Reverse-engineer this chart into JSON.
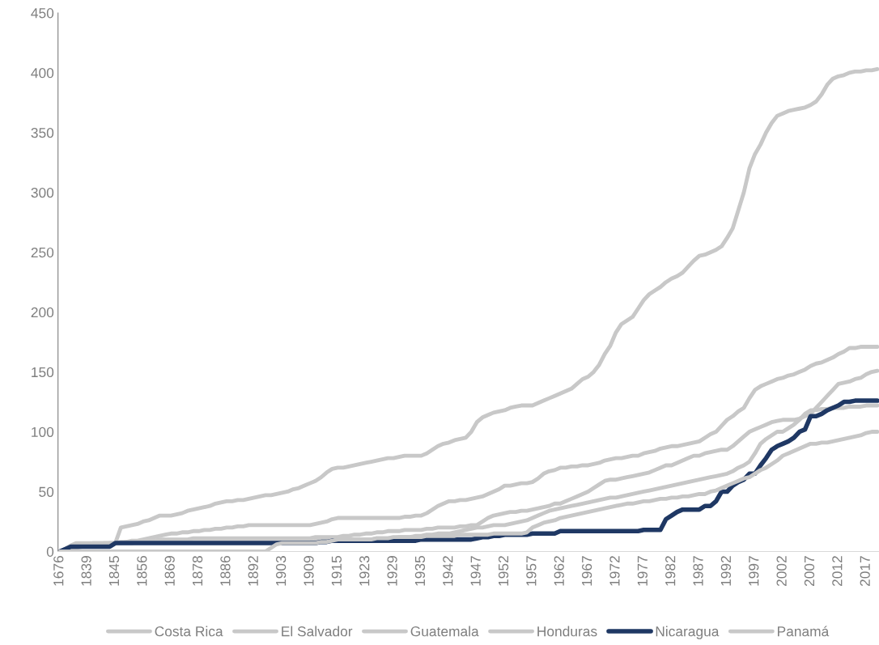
{
  "chart_data": {
    "type": "line",
    "categories": [
      "1676",
      null,
      null,
      null,
      null,
      "1839",
      null,
      null,
      null,
      null,
      "1845",
      null,
      null,
      null,
      null,
      "1856",
      null,
      null,
      null,
      null,
      "1869",
      null,
      null,
      null,
      null,
      "1878",
      null,
      null,
      null,
      null,
      "1886",
      null,
      null,
      null,
      null,
      "1892",
      null,
      null,
      null,
      null,
      "1903",
      null,
      null,
      null,
      null,
      "1909",
      null,
      null,
      null,
      null,
      "1915",
      null,
      null,
      null,
      null,
      "1923",
      null,
      null,
      null,
      null,
      "1929",
      null,
      null,
      null,
      null,
      "1935",
      null,
      null,
      null,
      null,
      "1942",
      null,
      null,
      null,
      null,
      "1947",
      null,
      null,
      null,
      null,
      "1952",
      null,
      null,
      null,
      null,
      "1957",
      null,
      null,
      null,
      null,
      "1962",
      null,
      null,
      null,
      null,
      "1967",
      null,
      null,
      null,
      null,
      "1972",
      null,
      null,
      null,
      null,
      "1977",
      null,
      null,
      null,
      null,
      "1982",
      null,
      null,
      null,
      null,
      "1987",
      null,
      null,
      null,
      null,
      "1992",
      null,
      null,
      null,
      null,
      "1997",
      null,
      null,
      null,
      null,
      "2002",
      null,
      null,
      null,
      null,
      "2007",
      null,
      null,
      null,
      null,
      "2012",
      null,
      null,
      null,
      null,
      "2017",
      null,
      null
    ],
    "series": [
      {
        "name": "Costa Rica",
        "color": "#c8c8c8",
        "values": [
          0,
          2,
          5,
          7,
          7,
          7,
          7,
          7,
          7,
          7,
          7,
          20,
          21,
          22,
          23,
          25,
          26,
          28,
          30,
          30,
          30,
          31,
          32,
          34,
          35,
          36,
          37,
          38,
          40,
          41,
          42,
          42,
          43,
          43,
          44,
          45,
          46,
          47,
          47,
          48,
          49,
          50,
          52,
          53,
          55,
          57,
          59,
          62,
          66,
          69,
          70,
          70,
          71,
          72,
          73,
          74,
          75,
          76,
          77,
          78,
          78,
          79,
          80,
          80,
          80,
          80,
          82,
          85,
          88,
          90,
          91,
          93,
          94,
          95,
          100,
          108,
          112,
          114,
          116,
          117,
          118,
          120,
          121,
          122,
          122,
          122,
          124,
          126,
          128,
          130,
          132,
          134,
          136,
          140,
          144,
          146,
          150,
          156,
          165,
          172,
          183,
          190,
          193,
          196,
          203,
          210,
          215,
          218,
          221,
          225,
          228,
          230,
          233,
          238,
          243,
          247,
          248,
          250,
          252,
          255,
          262,
          270,
          285,
          300,
          320,
          332,
          340,
          350,
          358,
          364,
          366,
          368,
          369,
          370,
          371,
          373,
          376,
          382,
          390,
          395,
          397,
          398,
          400,
          401,
          401,
          402,
          402,
          403
        ]
      },
      {
        "name": "El Salvador",
        "color": "#c8c8c8",
        "values": [
          0,
          1,
          3,
          4,
          5,
          5,
          6,
          6,
          7,
          7,
          7,
          7,
          8,
          8,
          8,
          9,
          9,
          9,
          10,
          10,
          10,
          10,
          10,
          10,
          11,
          11,
          11,
          11,
          11,
          11,
          11,
          11,
          11,
          11,
          11,
          11,
          11,
          11,
          11,
          11,
          11,
          11,
          11,
          11,
          11,
          11,
          12,
          12,
          12,
          12,
          12,
          13,
          13,
          14,
          14,
          15,
          15,
          16,
          16,
          17,
          17,
          17,
          18,
          18,
          18,
          18,
          19,
          19,
          20,
          20,
          20,
          20,
          21,
          21,
          22,
          22,
          25,
          28,
          30,
          31,
          32,
          33,
          33,
          34,
          34,
          35,
          36,
          37,
          38,
          40,
          40,
          42,
          44,
          46,
          48,
          50,
          53,
          56,
          59,
          60,
          60,
          61,
          62,
          63,
          64,
          65,
          66,
          68,
          70,
          72,
          72,
          74,
          76,
          78,
          80,
          80,
          82,
          83,
          84,
          85,
          85,
          88,
          92,
          96,
          100,
          102,
          104,
          106,
          108,
          109,
          110,
          110,
          110,
          111,
          113,
          115,
          120,
          125,
          130,
          135,
          140,
          141,
          142,
          144,
          145,
          148,
          150,
          151
        ]
      },
      {
        "name": "Guatemala",
        "color": "#c8c8c8",
        "values": [
          0,
          1,
          2,
          3,
          4,
          5,
          5,
          6,
          6,
          7,
          7,
          8,
          8,
          9,
          9,
          10,
          11,
          12,
          13,
          14,
          15,
          15,
          16,
          16,
          17,
          17,
          18,
          18,
          19,
          19,
          20,
          20,
          21,
          21,
          22,
          22,
          22,
          22,
          22,
          22,
          22,
          22,
          22,
          22,
          22,
          22,
          23,
          24,
          25,
          27,
          28,
          28,
          28,
          28,
          28,
          28,
          28,
          28,
          28,
          28,
          28,
          28,
          29,
          29,
          30,
          30,
          32,
          35,
          38,
          40,
          42,
          42,
          43,
          43,
          44,
          45,
          46,
          48,
          50,
          52,
          55,
          55,
          56,
          57,
          57,
          58,
          61,
          65,
          67,
          68,
          70,
          70,
          71,
          71,
          72,
          72,
          73,
          74,
          76,
          77,
          78,
          78,
          79,
          80,
          80,
          82,
          83,
          84,
          86,
          87,
          88,
          88,
          89,
          90,
          91,
          92,
          95,
          98,
          100,
          105,
          110,
          113,
          117,
          120,
          128,
          135,
          138,
          140,
          142,
          144,
          145,
          147,
          148,
          150,
          152,
          155,
          157,
          158,
          160,
          162,
          165,
          167,
          170,
          170,
          171,
          171,
          171,
          171
        ]
      },
      {
        "name": "Honduras",
        "color": "#c8c8c8",
        "values": [
          0,
          2,
          4,
          5,
          6,
          6,
          7,
          7,
          7,
          7,
          7,
          7,
          7,
          7,
          8,
          8,
          8,
          8,
          8,
          8,
          8,
          8,
          8,
          8,
          8,
          8,
          8,
          8,
          8,
          8,
          8,
          8,
          8,
          8,
          8,
          8,
          8,
          8,
          8,
          8,
          8,
          8,
          8,
          8,
          8,
          8,
          9,
          9,
          9,
          10,
          10,
          10,
          10,
          10,
          10,
          10,
          10,
          11,
          11,
          11,
          11,
          12,
          12,
          12,
          13,
          13,
          14,
          14,
          15,
          15,
          15,
          16,
          17,
          18,
          19,
          20,
          20,
          21,
          22,
          22,
          22,
          23,
          24,
          25,
          26,
          28,
          30,
          32,
          34,
          35,
          36,
          37,
          38,
          39,
          40,
          41,
          42,
          43,
          44,
          45,
          45,
          46,
          47,
          48,
          49,
          50,
          51,
          52,
          53,
          54,
          55,
          56,
          57,
          58,
          59,
          60,
          61,
          62,
          63,
          64,
          65,
          67,
          70,
          72,
          75,
          82,
          90,
          94,
          97,
          100,
          100,
          103,
          106,
          110,
          115,
          118,
          118,
          119,
          119,
          120,
          120,
          120,
          121,
          121,
          121,
          122,
          122,
          122
        ]
      },
      {
        "name": "Nicaragua",
        "color": "#1f3864",
        "values": [
          0,
          2,
          4,
          4,
          4,
          4,
          4,
          4,
          4,
          4,
          7,
          7,
          7,
          7,
          7,
          7,
          7,
          7,
          7,
          7,
          7,
          7,
          7,
          7,
          7,
          7,
          7,
          7,
          7,
          7,
          7,
          7,
          7,
          7,
          7,
          7,
          7,
          7,
          7,
          7,
          7,
          7,
          7,
          7,
          7,
          7,
          7,
          8,
          8,
          9,
          9,
          9,
          9,
          9,
          9,
          9,
          9,
          9,
          9,
          9,
          9,
          9,
          9,
          9,
          9,
          10,
          10,
          10,
          10,
          10,
          10,
          10,
          10,
          10,
          10,
          11,
          12,
          12,
          13,
          13,
          14,
          14,
          14,
          14,
          14,
          15,
          15,
          15,
          15,
          15,
          17,
          17,
          17,
          17,
          17,
          17,
          17,
          17,
          17,
          17,
          17,
          17,
          17,
          17,
          17,
          18,
          18,
          18,
          18,
          27,
          30,
          33,
          35,
          35,
          35,
          35,
          38,
          38,
          42,
          50,
          50,
          55,
          58,
          60,
          65,
          65,
          72,
          78,
          85,
          88,
          90,
          92,
          95,
          100,
          102,
          113,
          113,
          115,
          118,
          120,
          122,
          125,
          125,
          126,
          126,
          126,
          126,
          126
        ]
      },
      {
        "name": "Panamá",
        "color": "#c8c8c8",
        "values": [
          0,
          0,
          0,
          0,
          0,
          0,
          0,
          0,
          0,
          0,
          0,
          0,
          0,
          0,
          0,
          0,
          0,
          0,
          0,
          0,
          0,
          0,
          0,
          0,
          0,
          0,
          0,
          0,
          0,
          0,
          0,
          0,
          0,
          0,
          0,
          0,
          0,
          0,
          3,
          6,
          7,
          7,
          7,
          7,
          7,
          7,
          7,
          8,
          8,
          9,
          10,
          10,
          10,
          10,
          10,
          10,
          10,
          11,
          11,
          11,
          12,
          12,
          12,
          12,
          12,
          12,
          13,
          13,
          13,
          13,
          13,
          13,
          14,
          14,
          14,
          14,
          14,
          14,
          15,
          15,
          15,
          15,
          15,
          15,
          16,
          20,
          22,
          24,
          25,
          26,
          28,
          29,
          30,
          31,
          32,
          33,
          34,
          35,
          36,
          37,
          38,
          39,
          40,
          40,
          41,
          42,
          42,
          43,
          44,
          44,
          45,
          45,
          46,
          46,
          47,
          48,
          48,
          50,
          51,
          53,
          55,
          57,
          59,
          61,
          62,
          65,
          68,
          70,
          73,
          76,
          80,
          82,
          84,
          86,
          88,
          90,
          90,
          91,
          91,
          92,
          93,
          94,
          95,
          96,
          97,
          99,
          100,
          100
        ]
      }
    ],
    "ylim": [
      0,
      450
    ],
    "yticks": [
      0,
      50,
      100,
      150,
      200,
      250,
      300,
      350,
      400,
      450
    ],
    "grid": false,
    "legend": "bottom",
    "marker": "none",
    "line_style": "solid"
  }
}
